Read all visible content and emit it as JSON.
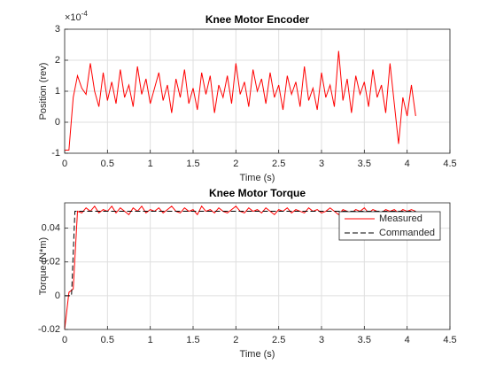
{
  "chart_data": [
    {
      "type": "line",
      "title": "Knee Motor Encoder",
      "x_label": "Time (s)",
      "y_label": "Position (rev)",
      "y_scale_label": "×10",
      "y_scale_power": "-4",
      "xlim": [
        0,
        4.5
      ],
      "xticks": [
        0,
        0.5,
        1,
        1.5,
        2,
        2.5,
        3,
        3.5,
        4,
        4.5
      ],
      "ylim": [
        -1,
        3
      ],
      "yticks": [
        -1,
        0,
        1,
        2,
        3
      ],
      "grid": true,
      "series": [
        {
          "name": "Position",
          "color": "#ff0000",
          "dash": false,
          "x": [
            0,
            0.05,
            0.1,
            0.15,
            0.2,
            0.25,
            0.3,
            0.35,
            0.4,
            0.45,
            0.5,
            0.55,
            0.6,
            0.65,
            0.7,
            0.75,
            0.8,
            0.85,
            0.9,
            0.95,
            1,
            1.05,
            1.1,
            1.15,
            1.2,
            1.25,
            1.3,
            1.35,
            1.4,
            1.45,
            1.5,
            1.55,
            1.6,
            1.65,
            1.7,
            1.75,
            1.8,
            1.85,
            1.9,
            1.95,
            2,
            2.05,
            2.1,
            2.15,
            2.2,
            2.25,
            2.3,
            2.35,
            2.4,
            2.45,
            2.5,
            2.55,
            2.6,
            2.65,
            2.7,
            2.75,
            2.8,
            2.85,
            2.9,
            2.95,
            3,
            3.05,
            3.1,
            3.15,
            3.2,
            3.25,
            3.3,
            3.35,
            3.4,
            3.45,
            3.5,
            3.55,
            3.6,
            3.65,
            3.7,
            3.75,
            3.8,
            3.85,
            3.9,
            3.95,
            4,
            4.05,
            4.1
          ],
          "values": [
            -0.9,
            -0.9,
            0.8,
            1.5,
            1.1,
            0.9,
            1.9,
            1.0,
            0.5,
            1.6,
            0.7,
            1.3,
            0.6,
            1.7,
            0.8,
            1.2,
            0.5,
            1.8,
            0.9,
            1.4,
            0.6,
            1.1,
            1.6,
            0.7,
            1.2,
            0.3,
            1.4,
            0.8,
            1.7,
            0.6,
            1.1,
            0.4,
            1.6,
            0.9,
            1.5,
            0.3,
            1.2,
            0.8,
            1.5,
            0.6,
            1.9,
            0.9,
            1.3,
            0.5,
            1.7,
            1.0,
            1.4,
            0.6,
            1.6,
            0.8,
            1.2,
            0.4,
            1.5,
            0.9,
            1.3,
            0.5,
            1.8,
            0.7,
            1.1,
            0.4,
            1.6,
            0.8,
            1.2,
            0.5,
            2.3,
            0.7,
            1.4,
            0.3,
            1.5,
            0.9,
            1.3,
            0.5,
            1.7,
            0.8,
            1.2,
            0.3,
            1.9,
            0.6,
            -0.7,
            0.8,
            0.2,
            1.2,
            0.2
          ]
        }
      ]
    },
    {
      "type": "line",
      "title": "Knee Motor Torque",
      "x_label": "Time (s)",
      "y_label": "Torque (N*m)",
      "xlim": [
        0,
        4.5
      ],
      "xticks": [
        0,
        0.5,
        1,
        1.5,
        2,
        2.5,
        3,
        3.5,
        4,
        4.5
      ],
      "ylim": [
        -0.02,
        0.055
      ],
      "yticks": [
        -0.02,
        0,
        0.02,
        0.04
      ],
      "grid": true,
      "legend": "northeast",
      "series": [
        {
          "name": "Measured",
          "color": "#ff0000",
          "dash": false,
          "x": [
            0,
            0.05,
            0.1,
            0.15,
            0.2,
            0.25,
            0.3,
            0.35,
            0.4,
            0.45,
            0.5,
            0.55,
            0.6,
            0.65,
            0.7,
            0.75,
            0.8,
            0.85,
            0.9,
            0.95,
            1,
            1.05,
            1.1,
            1.15,
            1.2,
            1.25,
            1.3,
            1.35,
            1.4,
            1.45,
            1.5,
            1.55,
            1.6,
            1.65,
            1.7,
            1.75,
            1.8,
            1.85,
            1.9,
            1.95,
            2,
            2.05,
            2.1,
            2.15,
            2.2,
            2.25,
            2.3,
            2.35,
            2.4,
            2.45,
            2.5,
            2.55,
            2.6,
            2.65,
            2.7,
            2.75,
            2.8,
            2.85,
            2.9,
            2.95,
            3,
            3.05,
            3.1,
            3.15,
            3.2,
            3.25,
            3.3,
            3.35,
            3.4,
            3.45,
            3.5,
            3.55,
            3.6,
            3.65,
            3.7,
            3.75,
            3.8,
            3.85,
            3.9,
            3.95,
            4,
            4.05,
            4.1
          ],
          "values": [
            -0.02,
            0.002,
            0.004,
            0.05,
            0.049,
            0.052,
            0.05,
            0.053,
            0.049,
            0.051,
            0.05,
            0.053,
            0.049,
            0.052,
            0.05,
            0.048,
            0.052,
            0.05,
            0.053,
            0.049,
            0.051,
            0.05,
            0.052,
            0.049,
            0.051,
            0.053,
            0.05,
            0.049,
            0.052,
            0.05,
            0.051,
            0.048,
            0.053,
            0.05,
            0.051,
            0.049,
            0.052,
            0.05,
            0.049,
            0.051,
            0.053,
            0.05,
            0.049,
            0.052,
            0.05,
            0.051,
            0.049,
            0.052,
            0.05,
            0.048,
            0.051,
            0.05,
            0.052,
            0.049,
            0.051,
            0.05,
            0.049,
            0.052,
            0.05,
            0.051,
            0.049,
            0.05,
            0.052,
            0.05,
            0.048,
            0.051,
            0.05,
            0.049,
            0.051,
            0.05,
            0.052,
            0.049,
            0.051,
            0.05,
            0.049,
            0.051,
            0.05,
            0.051,
            0.049,
            0.051,
            0.05,
            0.051,
            0.05
          ]
        },
        {
          "name": "Commanded",
          "color": "#000000",
          "dash": true,
          "x": [
            0,
            0.08,
            0.12,
            4.1
          ],
          "values": [
            0,
            0,
            0.05,
            0.05
          ]
        }
      ]
    }
  ]
}
